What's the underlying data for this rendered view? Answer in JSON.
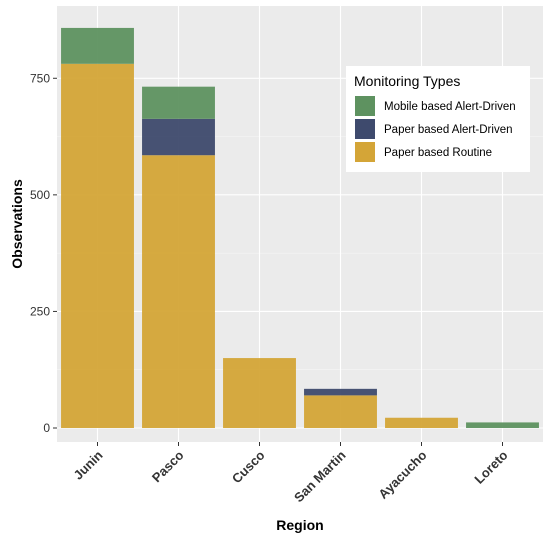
{
  "chart_data": {
    "type": "bar",
    "stacked": true,
    "categories": [
      "Junin",
      "Pasco",
      "Cusco",
      "San Martin",
      "Ayacucho",
      "Loreto"
    ],
    "series": [
      {
        "name": "Paper based Routine",
        "color": "#D4A537",
        "values": [
          781,
          585,
          150,
          70,
          22,
          0
        ]
      },
      {
        "name": "Paper based Alert-Driven",
        "color": "#3E4A6D",
        "values": [
          0,
          78,
          0,
          14,
          0,
          0
        ]
      },
      {
        "name": "Mobile based Alert-Driven",
        "color": "#5E9260",
        "values": [
          77,
          69,
          0,
          0,
          0,
          12
        ]
      }
    ],
    "xlabel": "Region",
    "ylabel": "Observations",
    "ylim": [
      -30,
      905
    ],
    "yticks": [
      0,
      250,
      500,
      750
    ],
    "grid": true,
    "panel_background": "#EBEBEB",
    "legend": {
      "title": "Monitoring Types",
      "position": "top-right",
      "order": [
        "Mobile based Alert-Driven",
        "Paper based Alert-Driven",
        "Paper based Routine"
      ]
    }
  }
}
